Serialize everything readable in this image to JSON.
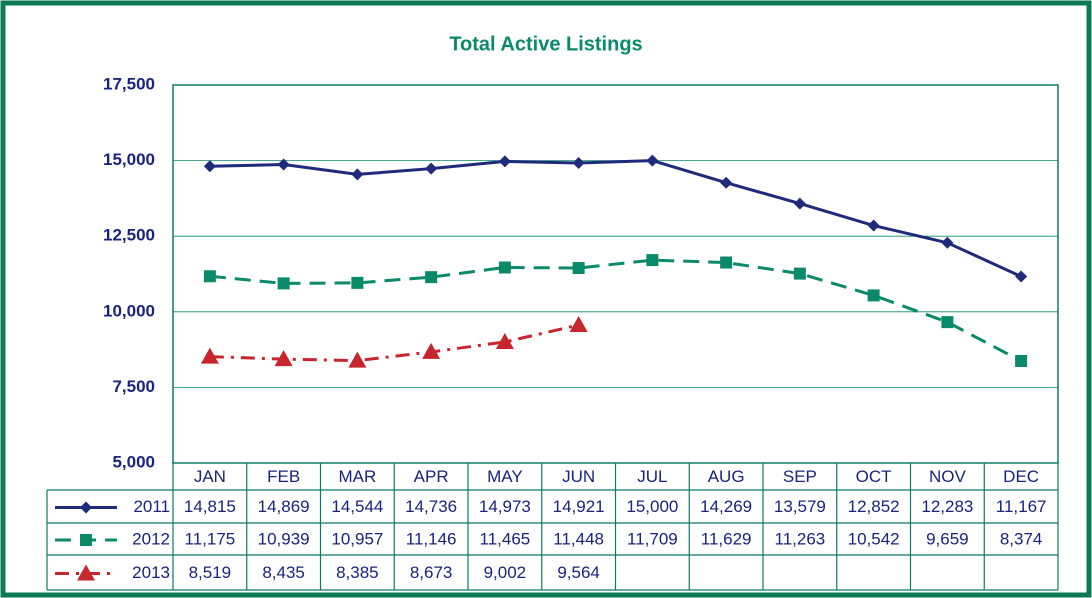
{
  "chart_data": {
    "type": "line",
    "title": "Total Active Listings",
    "categories": [
      "JAN",
      "FEB",
      "MAR",
      "APR",
      "MAY",
      "JUN",
      "JUL",
      "AUG",
      "SEP",
      "OCT",
      "NOV",
      "DEC"
    ],
    "ylim": [
      5000,
      17500
    ],
    "yticks": [
      {
        "value": 5000,
        "label": "5,000"
      },
      {
        "value": 7500,
        "label": "7,500"
      },
      {
        "value": 10000,
        "label": "10,000"
      },
      {
        "value": 12500,
        "label": "12,500"
      },
      {
        "value": 15000,
        "label": "15,000"
      },
      {
        "value": 17500,
        "label": "17,500"
      }
    ],
    "grid": true,
    "series": [
      {
        "name": "2011",
        "color": "#1f2a7a",
        "dash": "solid",
        "marker": "diamond",
        "values": [
          14815,
          14869,
          14544,
          14736,
          14973,
          14921,
          15000,
          14269,
          13579,
          12852,
          12283,
          11167
        ],
        "value_labels": [
          "14,815",
          "14,869",
          "14,544",
          "14,736",
          "14,973",
          "14,921",
          "15,000",
          "14,269",
          "13,579",
          "12,852",
          "12,283",
          "11,167"
        ]
      },
      {
        "name": "2012",
        "color": "#0b8a6a",
        "dash": "dashed",
        "marker": "square",
        "values": [
          11175,
          10939,
          10957,
          11146,
          11465,
          11448,
          11709,
          11629,
          11263,
          10542,
          9659,
          8374
        ],
        "value_labels": [
          "11,175",
          "10,939",
          "10,957",
          "11,146",
          "11,465",
          "11,448",
          "11,709",
          "11,629",
          "11,263",
          "10,542",
          "9,659",
          "8,374"
        ]
      },
      {
        "name": "2013",
        "color": "#c8262e",
        "dash": "dashdot",
        "marker": "triangle",
        "values": [
          8519,
          8435,
          8385,
          8673,
          9002,
          9564,
          null,
          null,
          null,
          null,
          null,
          null
        ],
        "value_labels": [
          "8,519",
          "8,435",
          "8,385",
          "8,673",
          "9,002",
          "9,564",
          null,
          null,
          null,
          null,
          null,
          null
        ]
      }
    ]
  }
}
